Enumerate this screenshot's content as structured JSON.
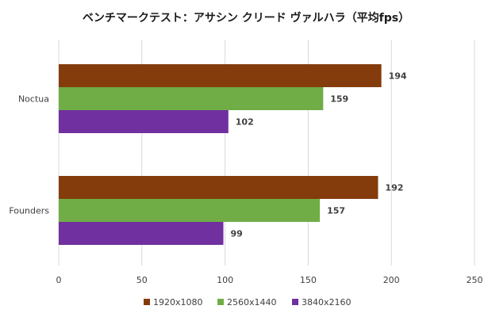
{
  "chart_data": {
    "type": "bar",
    "orientation": "horizontal",
    "title": "ベンチマークテスト：アサシン クリード ヴァルハラ（平均fps）",
    "categories": [
      "Noctua",
      "Founders"
    ],
    "series": [
      {
        "name": "1920x1080",
        "color": "#843c0c",
        "values": [
          194,
          192
        ]
      },
      {
        "name": "2560x1440",
        "color": "#70ad47",
        "values": [
          159,
          157
        ]
      },
      {
        "name": "3840x2160",
        "color": "#7030a0",
        "values": [
          102,
          99
        ]
      }
    ],
    "xlim": [
      0,
      250
    ],
    "xticks": [
      "0",
      "50",
      "100",
      "150",
      "200",
      "250"
    ],
    "grid": true,
    "legend": "bottom",
    "data_labels": true
  }
}
